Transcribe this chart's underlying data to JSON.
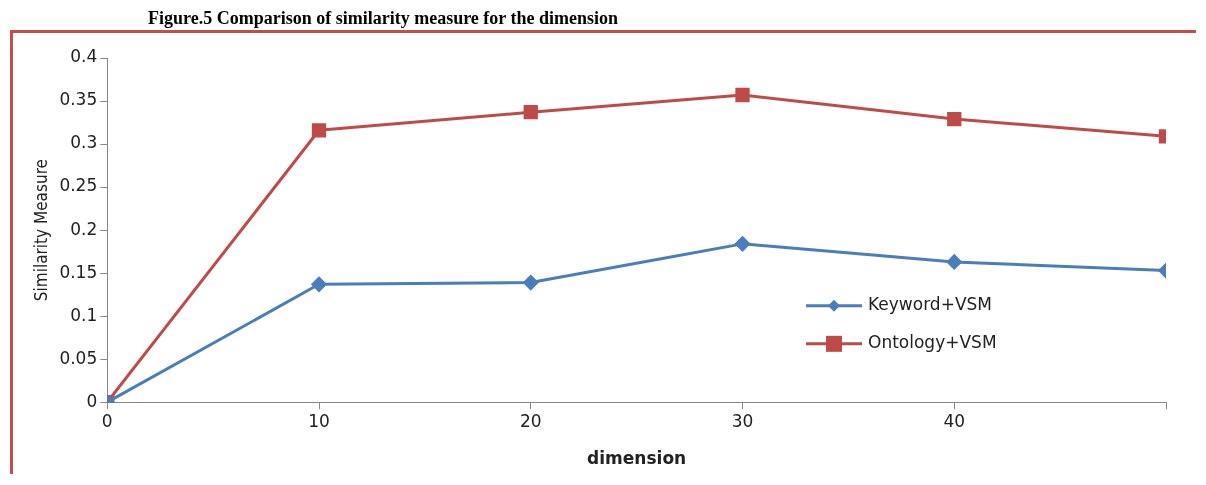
{
  "chart_data": {
    "type": "line",
    "title": "Figure.5 Comparison of similarity measure for the dimension",
    "xlabel": "dimension",
    "ylabel": "Similarity Measure",
    "x": [
      0,
      10,
      20,
      30,
      40,
      50
    ],
    "series": [
      {
        "name": "Keyword+VSM",
        "color": "#4a7ebb",
        "marker": "diamond",
        "values": [
          0,
          0.137,
          0.139,
          0.184,
          0.163,
          0.153
        ]
      },
      {
        "name": "Ontology+VSM",
        "color": "#be4b48",
        "marker": "square",
        "values": [
          0,
          0.316,
          0.337,
          0.357,
          0.329,
          0.309
        ]
      }
    ],
    "xlim": [
      0,
      50
    ],
    "xticks": [
      0,
      10,
      20,
      30,
      40,
      {
        "value": 50,
        "label": null
      }
    ],
    "ylim": [
      0,
      0.4
    ],
    "yticks": [
      0,
      0.05,
      0.1,
      0.15,
      0.2,
      0.25,
      0.3,
      0.35,
      0.4
    ],
    "legend": "right",
    "line_style": "solid"
  }
}
